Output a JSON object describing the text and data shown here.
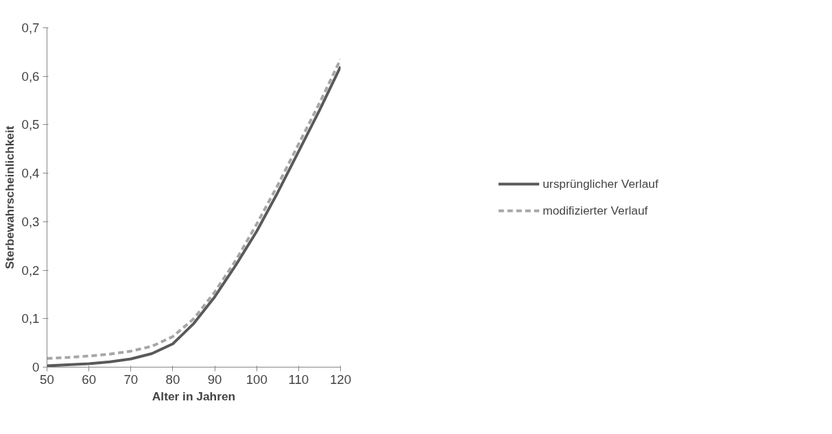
{
  "chart_data": {
    "type": "line",
    "xlabel": "Alter in Jahren",
    "ylabel": "Sterbewahrscheinlichkeit",
    "x": [
      50,
      55,
      60,
      65,
      70,
      75,
      80,
      85,
      90,
      95,
      100,
      105,
      110,
      115,
      120
    ],
    "series": [
      {
        "name": "ursprünglicher Verlauf",
        "color": "#595959",
        "line_style": "solid",
        "values": [
          0.003,
          0.005,
          0.007,
          0.011,
          0.017,
          0.028,
          0.048,
          0.09,
          0.145,
          0.21,
          0.28,
          0.36,
          0.445,
          0.53,
          0.62
        ]
      },
      {
        "name": "modifizierter Verlauf",
        "color": "#a6a6a6",
        "line_style": "dashed",
        "values": [
          0.018,
          0.02,
          0.023,
          0.027,
          0.033,
          0.043,
          0.063,
          0.1,
          0.155,
          0.22,
          0.295,
          0.375,
          0.46,
          0.545,
          0.635
        ]
      }
    ],
    "xlim": [
      50,
      120
    ],
    "ylim": [
      0,
      0.7
    ],
    "xticks": [
      50,
      60,
      70,
      80,
      90,
      100,
      110,
      120
    ],
    "yticks": [
      {
        "value": 0,
        "label": "0"
      },
      {
        "value": 0.1,
        "label": "0,1"
      },
      {
        "value": 0.2,
        "label": "0,2"
      },
      {
        "value": 0.3,
        "label": "0,3"
      },
      {
        "value": 0.4,
        "label": "0,4"
      },
      {
        "value": 0.5,
        "label": "0,5"
      },
      {
        "value": 0.6,
        "label": "0,6"
      },
      {
        "value": 0.7,
        "label": "0,7"
      }
    ],
    "grid": false,
    "legend": "right",
    "marker": "none"
  }
}
